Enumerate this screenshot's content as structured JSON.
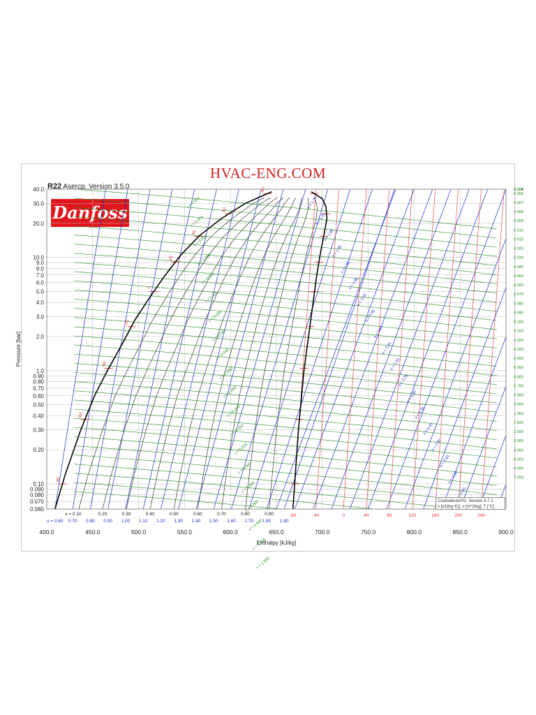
{
  "header": {
    "watermark": "HVAC-ENG.COM",
    "refrigerant": "R22",
    "version_text": "Asercp. Version 3.5.0",
    "logo_text": "Danfoss"
  },
  "footer_box": {
    "line1": "Coolselector®2. Version 3.7.1",
    "line2": "s [kJ/(kg·K)]. v [m^3/kg]. T [°C]"
  },
  "colors": {
    "dome": "#000000",
    "isotherm": "#e03030",
    "isentrope": "#1a2ad0",
    "isochore": "#1a8a1a",
    "grid": "#bbbbbb"
  },
  "chart_data": {
    "type": "line",
    "title": "",
    "xlabel": "Enthalpy [kJ/kg]",
    "ylabel": "Pressure [bar]",
    "xlim": [
      400,
      900
    ],
    "ylim": [
      0.06,
      40
    ],
    "y_scale": "log",
    "grid": true,
    "x_ticks": [
      "400.0",
      "450.0",
      "500.0",
      "550.0",
      "600.0",
      "650.0",
      "700.0",
      "750.0",
      "800.0",
      "850.0",
      "900.0"
    ],
    "x_tick_values": [
      400,
      450,
      500,
      550,
      600,
      650,
      700,
      750,
      800,
      850,
      900
    ],
    "y_ticks": [
      "40.0",
      "30.0",
      "20.0",
      "10.0",
      "9.0",
      "8.0",
      "7.0",
      "6.0",
      "5.0",
      "4.0",
      "3.0",
      "2.0",
      "1.0",
      "0.90",
      "0.80",
      "0.70",
      "0.60",
      "0.50",
      "0.40",
      "0.30",
      "0.20",
      "0.10",
      "0.090",
      "0.080",
      "0.070",
      "0.060"
    ],
    "y_tick_values": [
      40,
      30,
      20,
      10,
      9,
      8,
      7,
      6,
      5,
      4,
      3,
      2,
      1,
      0.9,
      0.8,
      0.7,
      0.6,
      0.5,
      0.4,
      0.3,
      0.2,
      0.1,
      0.09,
      0.08,
      0.07,
      0.06
    ],
    "saturation_dome": {
      "liquid": [
        [
          409,
          0.06
        ],
        [
          420,
          0.12
        ],
        [
          437,
          0.3
        ],
        [
          452,
          0.6
        ],
        [
          466,
          1.0
        ],
        [
          480,
          1.6
        ],
        [
          496,
          2.8
        ],
        [
          511,
          4.3
        ],
        [
          528,
          6.8
        ],
        [
          546,
          10.5
        ],
        [
          566,
          15.5
        ],
        [
          590,
          22
        ],
        [
          616,
          30
        ],
        [
          645,
          38
        ]
      ],
      "vapor": [
        [
          668,
          0.06
        ],
        [
          674,
          0.3
        ],
        [
          680,
          1.0
        ],
        [
          685,
          2.0
        ],
        [
          690,
          4.0
        ],
        [
          694,
          7.0
        ],
        [
          698,
          11
        ],
        [
          702,
          16
        ],
        [
          705,
          22
        ],
        [
          704,
          28
        ],
        [
          700,
          33
        ],
        [
          688,
          38
        ]
      ]
    },
    "quality_labels": [
      "x = 0.10",
      "0.20",
      "0.30",
      "0.40",
      "0.50",
      "0.60",
      "0.70",
      "0.80",
      "0.90"
    ],
    "quality_values": [
      0.1,
      0.2,
      0.3,
      0.4,
      0.5,
      0.6,
      0.7,
      0.8,
      0.9
    ],
    "entropy_bottom_labels": [
      "s = 0.60",
      "0.70",
      "0.80",
      "0.90",
      "1.00",
      "1.10",
      "1.20",
      "1.30",
      "1.40",
      "1.50",
      "1.60",
      "1.70",
      "1.80",
      "1.90"
    ],
    "entropy_bottom_values": [
      0.6,
      0.7,
      0.8,
      0.9,
      1.0,
      1.1,
      1.2,
      1.3,
      1.4,
      1.5,
      1.6,
      1.7,
      1.8,
      1.9
    ],
    "entropy_vapor_labels": [
      "s = 1.70",
      "s = 1.75",
      "s = 1.80",
      "s = 1.85",
      "s = 1.90",
      "s = 1.95",
      "s = 2.00",
      "s = 2.05",
      "s = 2.10",
      "s = 2.15",
      "s = 2.20",
      "s = 2.25",
      "s = 2.30",
      "s = 2.35",
      "s = 2.40",
      "s = 2.45",
      "s = 2.50",
      "s = 2.55",
      "s = 2.60"
    ],
    "temperature_bottom_labels": [
      "-80",
      "-40",
      "0",
      "40",
      "80",
      "120",
      "160",
      "200",
      "240"
    ],
    "temperature_bottom_values": [
      -80,
      -40,
      0,
      40,
      80,
      120,
      160,
      200,
      240
    ],
    "temperature_dome_labels": [
      "-80",
      "-60",
      "-40",
      "-20",
      "0",
      "20",
      "40",
      "60",
      "80"
    ],
    "temperature_dome_values": [
      -80,
      -60,
      -40,
      -20,
      0,
      20,
      40,
      60,
      80
    ],
    "volume_right_labels": [
      "0.004",
      "0.005",
      "0.006",
      "0.007",
      "0.008",
      "0.009",
      "0.010",
      "0.015",
      "0.020",
      "0.030",
      "0.040",
      "0.050",
      "0.060",
      "0.070",
      "0.080",
      "0.090",
      "0.100",
      "0.150",
      "0.200",
      "0.300",
      "0.400",
      "0.500",
      "0.600",
      "0.700",
      "0.800",
      "0.900",
      "1.000",
      "1.500",
      "2.000",
      "3.000",
      "4.000",
      "5.000",
      "6.000",
      "7.000"
    ],
    "volume_dome_labels": [
      "v = 0.002",
      "v = 0.004",
      "v = 0.006",
      "v = 0.008",
      "v = 0.010",
      "v = 0.015",
      "v = 0.020",
      "v = 0.030",
      "v = 0.040",
      "v = 0.060",
      "v = 0.080",
      "v = 0.100",
      "v = 0.150",
      "v = 0.200",
      "v = 0.300",
      "v = 0.400",
      "v = 0.600",
      "v = 0.800",
      "v = 1.000",
      "v = 1.500"
    ]
  }
}
